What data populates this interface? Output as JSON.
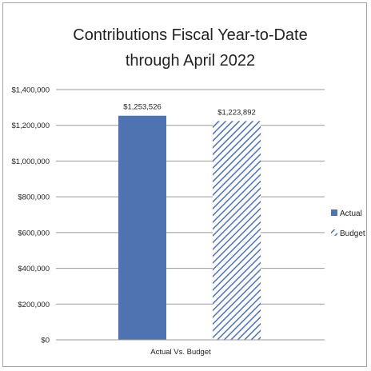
{
  "chart_data": {
    "type": "bar",
    "title_lines": [
      "Contributions Fiscal Year-to-Date",
      "through April 2022"
    ],
    "xlabel": "Actual Vs. Budget",
    "ylabel": "",
    "ylim": [
      0,
      1400000
    ],
    "yticks": [
      0,
      200000,
      400000,
      600000,
      800000,
      1000000,
      1200000,
      1400000
    ],
    "ytick_labels": [
      "$0",
      "$200,000",
      "$400,000",
      "$600,000",
      "$800,000",
      "$1,000,000",
      "$1,200,000",
      "$1,400,000"
    ],
    "grid": true,
    "legend_position": "right",
    "series": [
      {
        "name": "Actual",
        "value": 1253526,
        "label": "$1,253,526",
        "color": "#4f72b0",
        "pattern": "solid"
      },
      {
        "name": "Budget",
        "value": 1223892,
        "label": "$1,223,892",
        "color": "#4f72b0",
        "pattern": "diagonal-hatch"
      }
    ]
  }
}
